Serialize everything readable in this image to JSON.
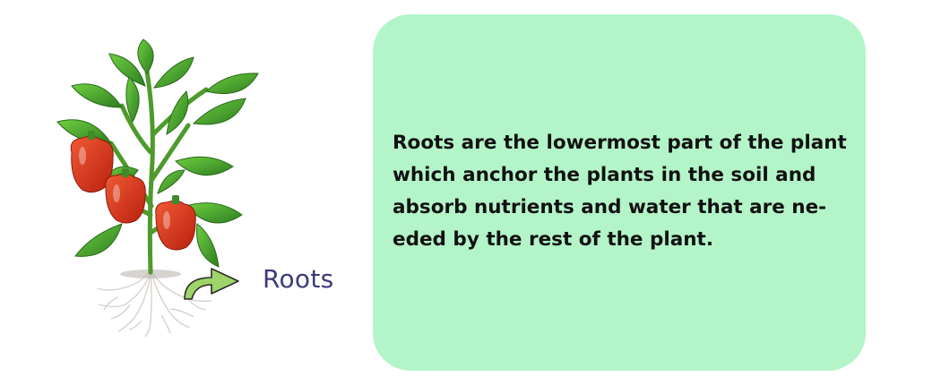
{
  "diagram": {
    "label": "Roots",
    "description_text": "Roots are the lowermost part of the plant which anchor the plants in the soil and absorb nutrients and water that are ne-eded by the rest of the plant."
  },
  "colors": {
    "card_background": "#b3f5c9",
    "label_color": "#3f3a7a",
    "arrow_fill": "#9ed46a",
    "leaf_green": "#3f9a2e",
    "pepper_red": "#d8321d"
  },
  "icons": {
    "plant": "pepper-plant-icon",
    "arrow": "curved-arrow-icon"
  }
}
